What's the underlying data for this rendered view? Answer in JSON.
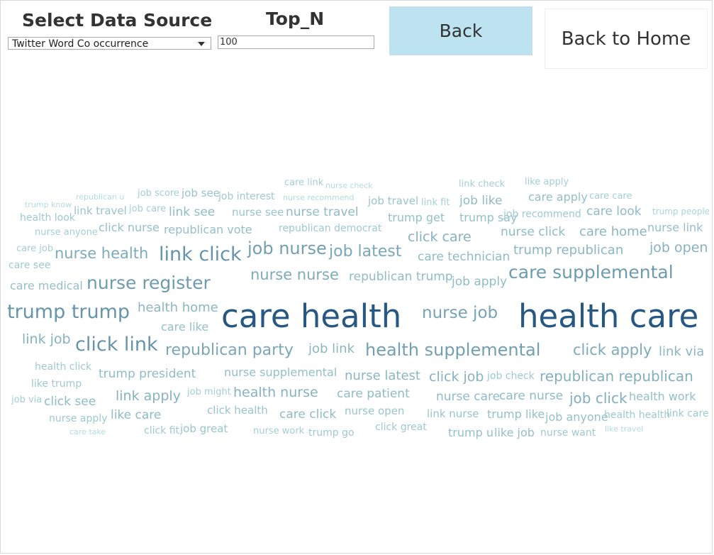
{
  "controls": {
    "source_label": "Select Data Source",
    "source_value": "Twitter Word Co occurrence",
    "topn_label": "Top_N",
    "topn_value": "100",
    "back_label": "Back",
    "home_label": "Back to Home"
  },
  "chart_data": {
    "type": "wordcloud",
    "words": [
      {
        "text": "care link",
        "weight": 13
      },
      {
        "text": "nurse check",
        "weight": 11
      },
      {
        "text": "link check",
        "weight": 13
      },
      {
        "text": "like apply",
        "weight": 13
      },
      {
        "text": "trump know",
        "weight": 11
      },
      {
        "text": "republican u",
        "weight": 11
      },
      {
        "text": "job score",
        "weight": 13
      },
      {
        "text": "job see",
        "weight": 15
      },
      {
        "text": "job interest",
        "weight": 14
      },
      {
        "text": "nurse recommend",
        "weight": 11
      },
      {
        "text": "job travel",
        "weight": 15
      },
      {
        "text": "link fit",
        "weight": 13
      },
      {
        "text": "job like",
        "weight": 17
      },
      {
        "text": "care apply",
        "weight": 16
      },
      {
        "text": "care care",
        "weight": 13
      },
      {
        "text": "health look",
        "weight": 14
      },
      {
        "text": "link travel",
        "weight": 15
      },
      {
        "text": "job care",
        "weight": 13
      },
      {
        "text": "link see",
        "weight": 17
      },
      {
        "text": "nurse see",
        "weight": 15
      },
      {
        "text": "nurse travel",
        "weight": 17
      },
      {
        "text": "trump get",
        "weight": 16
      },
      {
        "text": "trump say",
        "weight": 16
      },
      {
        "text": "job recommend",
        "weight": 14
      },
      {
        "text": "care look",
        "weight": 17
      },
      {
        "text": "trump people",
        "weight": 12
      },
      {
        "text": "nurse anyone",
        "weight": 13
      },
      {
        "text": "click nurse",
        "weight": 16
      },
      {
        "text": "republican vote",
        "weight": 16
      },
      {
        "text": "republican democrat",
        "weight": 14
      },
      {
        "text": "nurse click",
        "weight": 17
      },
      {
        "text": "nurse link",
        "weight": 16
      },
      {
        "text": "click care",
        "weight": 19
      },
      {
        "text": "care home",
        "weight": 18
      },
      {
        "text": "care job",
        "weight": 13
      },
      {
        "text": "nurse health",
        "weight": 21
      },
      {
        "text": "link click",
        "weight": 27
      },
      {
        "text": "job nurse",
        "weight": 24
      },
      {
        "text": "job latest",
        "weight": 22
      },
      {
        "text": "care technician",
        "weight": 17
      },
      {
        "text": "trump republican",
        "weight": 18
      },
      {
        "text": "job open",
        "weight": 19
      },
      {
        "text": "care see",
        "weight": 14
      },
      {
        "text": "nurse nurse",
        "weight": 21
      },
      {
        "text": "republican trump",
        "weight": 17
      },
      {
        "text": "job apply",
        "weight": 17
      },
      {
        "text": "care supplemental",
        "weight": 25
      },
      {
        "text": "care medical",
        "weight": 16
      },
      {
        "text": "nurse register",
        "weight": 25
      },
      {
        "text": "health home",
        "weight": 18
      },
      {
        "text": "trump trump",
        "weight": 27
      },
      {
        "text": "care health",
        "weight": 45
      },
      {
        "text": "nurse job",
        "weight": 23
      },
      {
        "text": "health care",
        "weight": 45
      },
      {
        "text": "care like",
        "weight": 16
      },
      {
        "text": "link job",
        "weight": 19
      },
      {
        "text": "click link",
        "weight": 27
      },
      {
        "text": "republican party",
        "weight": 22
      },
      {
        "text": "job link",
        "weight": 18
      },
      {
        "text": "health supplemental",
        "weight": 24
      },
      {
        "text": "click apply",
        "weight": 21
      },
      {
        "text": "link via",
        "weight": 18
      },
      {
        "text": "health click",
        "weight": 14
      },
      {
        "text": "trump president",
        "weight": 17
      },
      {
        "text": "nurse supplemental",
        "weight": 16
      },
      {
        "text": "nurse latest",
        "weight": 18
      },
      {
        "text": "click job",
        "weight": 19
      },
      {
        "text": "job check",
        "weight": 14
      },
      {
        "text": "republican republican",
        "weight": 20
      },
      {
        "text": "like trump",
        "weight": 14
      },
      {
        "text": "link apply",
        "weight": 19
      },
      {
        "text": "job might",
        "weight": 13
      },
      {
        "text": "health nurse",
        "weight": 19
      },
      {
        "text": "care patient",
        "weight": 17
      },
      {
        "text": "nurse care",
        "weight": 17
      },
      {
        "text": "care nurse",
        "weight": 17
      },
      {
        "text": "job click",
        "weight": 20
      },
      {
        "text": "health work",
        "weight": 16
      },
      {
        "text": "job via",
        "weight": 13
      },
      {
        "text": "click see",
        "weight": 17
      },
      {
        "text": "click health",
        "weight": 15
      },
      {
        "text": "care click",
        "weight": 17
      },
      {
        "text": "nurse open",
        "weight": 15
      },
      {
        "text": "link nurse",
        "weight": 15
      },
      {
        "text": "trump like",
        "weight": 16
      },
      {
        "text": "job anyone",
        "weight": 16
      },
      {
        "text": "health health",
        "weight": 14
      },
      {
        "text": "link care",
        "weight": 14
      },
      {
        "text": "nurse apply",
        "weight": 14
      },
      {
        "text": "like care",
        "weight": 17
      },
      {
        "text": "click great",
        "weight": 14
      },
      {
        "text": "care take",
        "weight": 11
      },
      {
        "text": "click fit",
        "weight": 14
      },
      {
        "text": "job great",
        "weight": 15
      },
      {
        "text": "nurse work",
        "weight": 13
      },
      {
        "text": "trump go",
        "weight": 14
      },
      {
        "text": "trump u",
        "weight": 16
      },
      {
        "text": "like job",
        "weight": 16
      },
      {
        "text": "nurse want",
        "weight": 14
      },
      {
        "text": "like travel",
        "weight": 11
      }
    ]
  }
}
